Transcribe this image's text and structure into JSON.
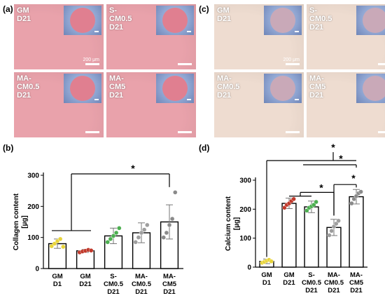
{
  "panels": {
    "a": "(a)",
    "b": "(b)",
    "c": "(c)",
    "d": "(d)"
  },
  "micrographs": {
    "a": [
      {
        "label": "GM\nD21",
        "scale_text": "200 μm"
      },
      {
        "label": "S-\nCM0.5\nD21",
        "scale_text": ""
      },
      {
        "label": "MA-\nCM0.5\nD21",
        "scale_text": ""
      },
      {
        "label": "MA-\nCM5\nD21",
        "scale_text": ""
      }
    ],
    "c": [
      {
        "label": "GM\nD21",
        "scale_text": "200 μm"
      },
      {
        "label": "S-\nCM0.5\nD21",
        "scale_text": ""
      },
      {
        "label": "MA-\nCM0.5\nD21",
        "scale_text": ""
      },
      {
        "label": "MA-\nCM5\nD21",
        "scale_text": ""
      }
    ],
    "colors": {
      "a_bg": "#e9a2ab",
      "a_disc": "#e07f90",
      "c_bg": "#eedcd0",
      "c_disc": "#c9a9b8"
    }
  },
  "chart_data": [
    {
      "type": "bar",
      "panel": "b",
      "ylabel": [
        "Collagen content",
        "[µg]"
      ],
      "ylim": [
        0,
        300
      ],
      "yticks": [
        "0",
        "100",
        "200",
        "300"
      ],
      "categories": [
        [
          "GM",
          "D1"
        ],
        [
          "GM",
          "D21"
        ],
        [
          "S-",
          "CM0.5",
          "D21"
        ],
        [
          "MA-",
          "CM0.5",
          "D21"
        ],
        [
          "MA-",
          "CM5",
          "D21"
        ]
      ],
      "values": [
        80,
        57,
        105,
        115,
        150
      ],
      "errors": [
        15,
        5,
        25,
        32,
        55
      ],
      "points": [
        [
          72,
          80,
          88,
          95,
          70
        ],
        [
          52,
          55,
          57,
          60,
          58
        ],
        [
          85,
          95,
          105,
          115,
          130
        ],
        [
          85,
          100,
          115,
          125,
          140
        ],
        [
          100,
          115,
          140,
          160,
          245
        ]
      ],
      "point_colors": [
        "#e8d43a",
        "#c0392b",
        "#4caf50",
        "#9e9e9e",
        "#8a8a8a"
      ],
      "significance": [
        {
          "from": [
            0,
            1
          ],
          "to": 4,
          "label": "*"
        }
      ]
    },
    {
      "type": "bar",
      "panel": "d",
      "ylabel": [
        "Calcium content",
        "[µg]"
      ],
      "ylim": [
        0,
        300
      ],
      "yticks": [
        "0",
        "100",
        "200",
        "300"
      ],
      "categories": [
        [
          "GM",
          "D1"
        ],
        [
          "GM",
          "D21"
        ],
        [
          "S-",
          "CM0.5",
          "D21"
        ],
        [
          "MA-",
          "CM0.5",
          "D21"
        ],
        [
          "MA-",
          "CM5",
          "D21"
        ]
      ],
      "values": [
        20,
        220,
        208,
        137,
        243
      ],
      "errors": [
        8,
        18,
        20,
        28,
        25
      ],
      "points": [
        [
          15,
          18,
          22,
          25,
          20
        ],
        [
          205,
          215,
          220,
          228,
          235
        ],
        [
          195,
          205,
          210,
          215,
          225
        ],
        [
          110,
          125,
          140,
          150,
          160
        ],
        [
          220,
          235,
          245,
          255,
          260
        ]
      ],
      "point_colors": [
        "#e8d43a",
        "#c0392b",
        "#4caf50",
        "#9e9e9e",
        "#8a8a8a"
      ],
      "significance": [
        {
          "from": [
            0
          ],
          "to": [
            1,
            2,
            3,
            4
          ],
          "label": "*"
        },
        {
          "from": [
            1,
            2
          ],
          "to": [
            3,
            4
          ],
          "label": "*"
        },
        {
          "from": [
            3
          ],
          "to": [
            4
          ],
          "label": "*"
        },
        {
          "from": [
            1,
            2
          ],
          "to": [
            3
          ],
          "label": "*"
        }
      ]
    }
  ]
}
